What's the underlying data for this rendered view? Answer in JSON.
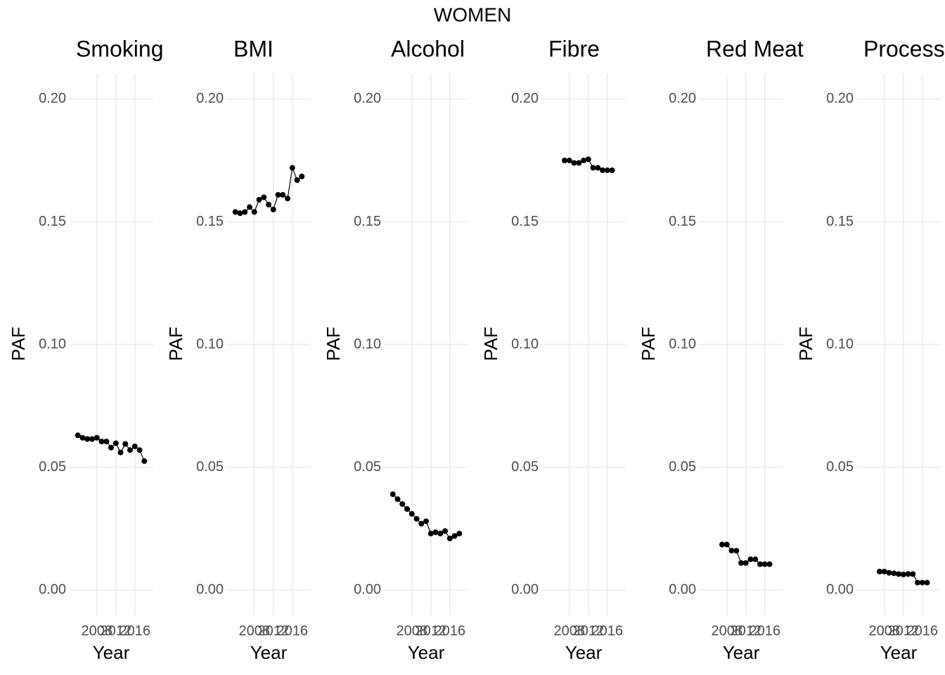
{
  "title": "WOMEN",
  "chart_data": [
    {
      "type": "line",
      "title": "Smoking",
      "xlabel": "Year",
      "ylabel": "PAF",
      "color": "#000000",
      "grid": true,
      "x": [
        2004,
        2005,
        2006,
        2007,
        2008,
        2009,
        2010,
        2011,
        2012,
        2013,
        2014,
        2015,
        2016,
        2017,
        2018
      ],
      "values": [
        0.063,
        0.062,
        0.0615,
        0.0615,
        0.062,
        0.0605,
        0.0605,
        0.058,
        0.0598,
        0.056,
        0.0595,
        0.057,
        0.0585,
        0.057,
        0.0525
      ],
      "xlim": [
        2003.3,
        2018.7
      ],
      "xticks": [
        2008,
        2012,
        2016
      ],
      "ylim": [
        -0.0103,
        0.2103
      ],
      "yticks": [
        {
          "value": 0,
          "label": "0.00"
        },
        {
          "value": 0.05,
          "label": "0.05"
        },
        {
          "value": 0.1,
          "label": "0.10"
        },
        {
          "value": 0.15,
          "label": "0.15"
        },
        {
          "value": 0.2,
          "label": "0.20"
        }
      ]
    },
    {
      "type": "line",
      "title": "BMI",
      "xlabel": "Year",
      "ylabel": "PAF",
      "color": "#000000",
      "grid": true,
      "x": [
        2004,
        2005,
        2006,
        2007,
        2008,
        2009,
        2010,
        2011,
        2012,
        2013,
        2014,
        2015,
        2016,
        2017,
        2018
      ],
      "values": [
        0.154,
        0.1535,
        0.154,
        0.156,
        0.154,
        0.159,
        0.16,
        0.157,
        0.155,
        0.161,
        0.161,
        0.1595,
        0.172,
        0.167,
        0.1685
      ],
      "xlim": [
        2003.3,
        2018.7
      ],
      "xticks": [
        2008,
        2012,
        2016
      ],
      "ylim": [
        -0.0103,
        0.2103
      ],
      "yticks": [
        {
          "value": 0,
          "label": "0.00"
        },
        {
          "value": 0.05,
          "label": "0.05"
        },
        {
          "value": 0.1,
          "label": "0.10"
        },
        {
          "value": 0.15,
          "label": "0.15"
        },
        {
          "value": 0.2,
          "label": "0.20"
        }
      ]
    },
    {
      "type": "line",
      "title": "Alcohol",
      "xlabel": "Year",
      "ylabel": "PAF",
      "color": "#000000",
      "grid": true,
      "x": [
        2004,
        2005,
        2006,
        2007,
        2008,
        2009,
        2010,
        2011,
        2012,
        2013,
        2014,
        2015,
        2016,
        2017,
        2018
      ],
      "values": [
        0.039,
        0.037,
        0.035,
        0.033,
        0.031,
        0.029,
        0.027,
        0.028,
        0.023,
        0.0235,
        0.023,
        0.024,
        0.021,
        0.022,
        0.023
      ],
      "xlim": [
        2003.3,
        2018.7
      ],
      "xticks": [
        2008,
        2012,
        2016
      ],
      "ylim": [
        -0.0103,
        0.2103
      ],
      "yticks": [
        {
          "value": 0,
          "label": "0.00"
        },
        {
          "value": 0.05,
          "label": "0.05"
        },
        {
          "value": 0.1,
          "label": "0.10"
        },
        {
          "value": 0.15,
          "label": "0.15"
        },
        {
          "value": 0.2,
          "label": "0.20"
        }
      ]
    },
    {
      "type": "line",
      "title": "Fibre",
      "xlabel": "Year",
      "ylabel": "PAF",
      "color": "#000000",
      "grid": true,
      "x": [
        2007,
        2008,
        2009,
        2010,
        2011,
        2012,
        2013,
        2014,
        2015,
        2016,
        2017
      ],
      "values": [
        0.175,
        0.175,
        0.174,
        0.174,
        0.175,
        0.1755,
        0.172,
        0.172,
        0.171,
        0.171,
        0.171
      ],
      "xlim": [
        2003.3,
        2018.7
      ],
      "xticks": [
        2008,
        2012,
        2016
      ],
      "ylim": [
        -0.0103,
        0.2103
      ],
      "yticks": [
        {
          "value": 0,
          "label": "0.00"
        },
        {
          "value": 0.05,
          "label": "0.05"
        },
        {
          "value": 0.1,
          "label": "0.10"
        },
        {
          "value": 0.15,
          "label": "0.15"
        },
        {
          "value": 0.2,
          "label": "0.20"
        }
      ]
    },
    {
      "type": "line",
      "title": "Red Meat",
      "xlabel": "Year",
      "ylabel": "PAF",
      "color": "#000000",
      "grid": true,
      "x": [
        2007,
        2008,
        2009,
        2010,
        2011,
        2012,
        2013,
        2014,
        2015,
        2016,
        2017
      ],
      "values": [
        0.0185,
        0.0185,
        0.016,
        0.016,
        0.011,
        0.011,
        0.0125,
        0.0125,
        0.0105,
        0.0105,
        0.0105
      ],
      "xlim": [
        2003.3,
        2018.7
      ],
      "xticks": [
        2008,
        2012,
        2016
      ],
      "ylim": [
        -0.0103,
        0.2103
      ],
      "yticks": [
        {
          "value": 0,
          "label": "0.00"
        },
        {
          "value": 0.05,
          "label": "0.05"
        },
        {
          "value": 0.1,
          "label": "0.10"
        },
        {
          "value": 0.15,
          "label": "0.15"
        },
        {
          "value": 0.2,
          "label": "0.20"
        }
      ]
    },
    {
      "type": "line",
      "title": "Processed Meat",
      "xlabel": "Year",
      "ylabel": "PAF",
      "color": "#000000",
      "grid": true,
      "x": [
        2007,
        2008,
        2009,
        2010,
        2011,
        2012,
        2013,
        2014,
        2015,
        2016,
        2017
      ],
      "values": [
        0.0075,
        0.0075,
        0.007,
        0.0068,
        0.0065,
        0.0063,
        0.0065,
        0.0065,
        0.003,
        0.003,
        0.003
      ],
      "xlim": [
        2003.3,
        2018.7
      ],
      "xticks": [
        2008,
        2012,
        2016
      ],
      "ylim": [
        -0.0103,
        0.2103
      ],
      "yticks": [
        {
          "value": 0,
          "label": "0.00"
        },
        {
          "value": 0.05,
          "label": "0.05"
        },
        {
          "value": 0.1,
          "label": "0.10"
        },
        {
          "value": 0.15,
          "label": "0.15"
        },
        {
          "value": 0.2,
          "label": "0.20"
        }
      ]
    }
  ]
}
